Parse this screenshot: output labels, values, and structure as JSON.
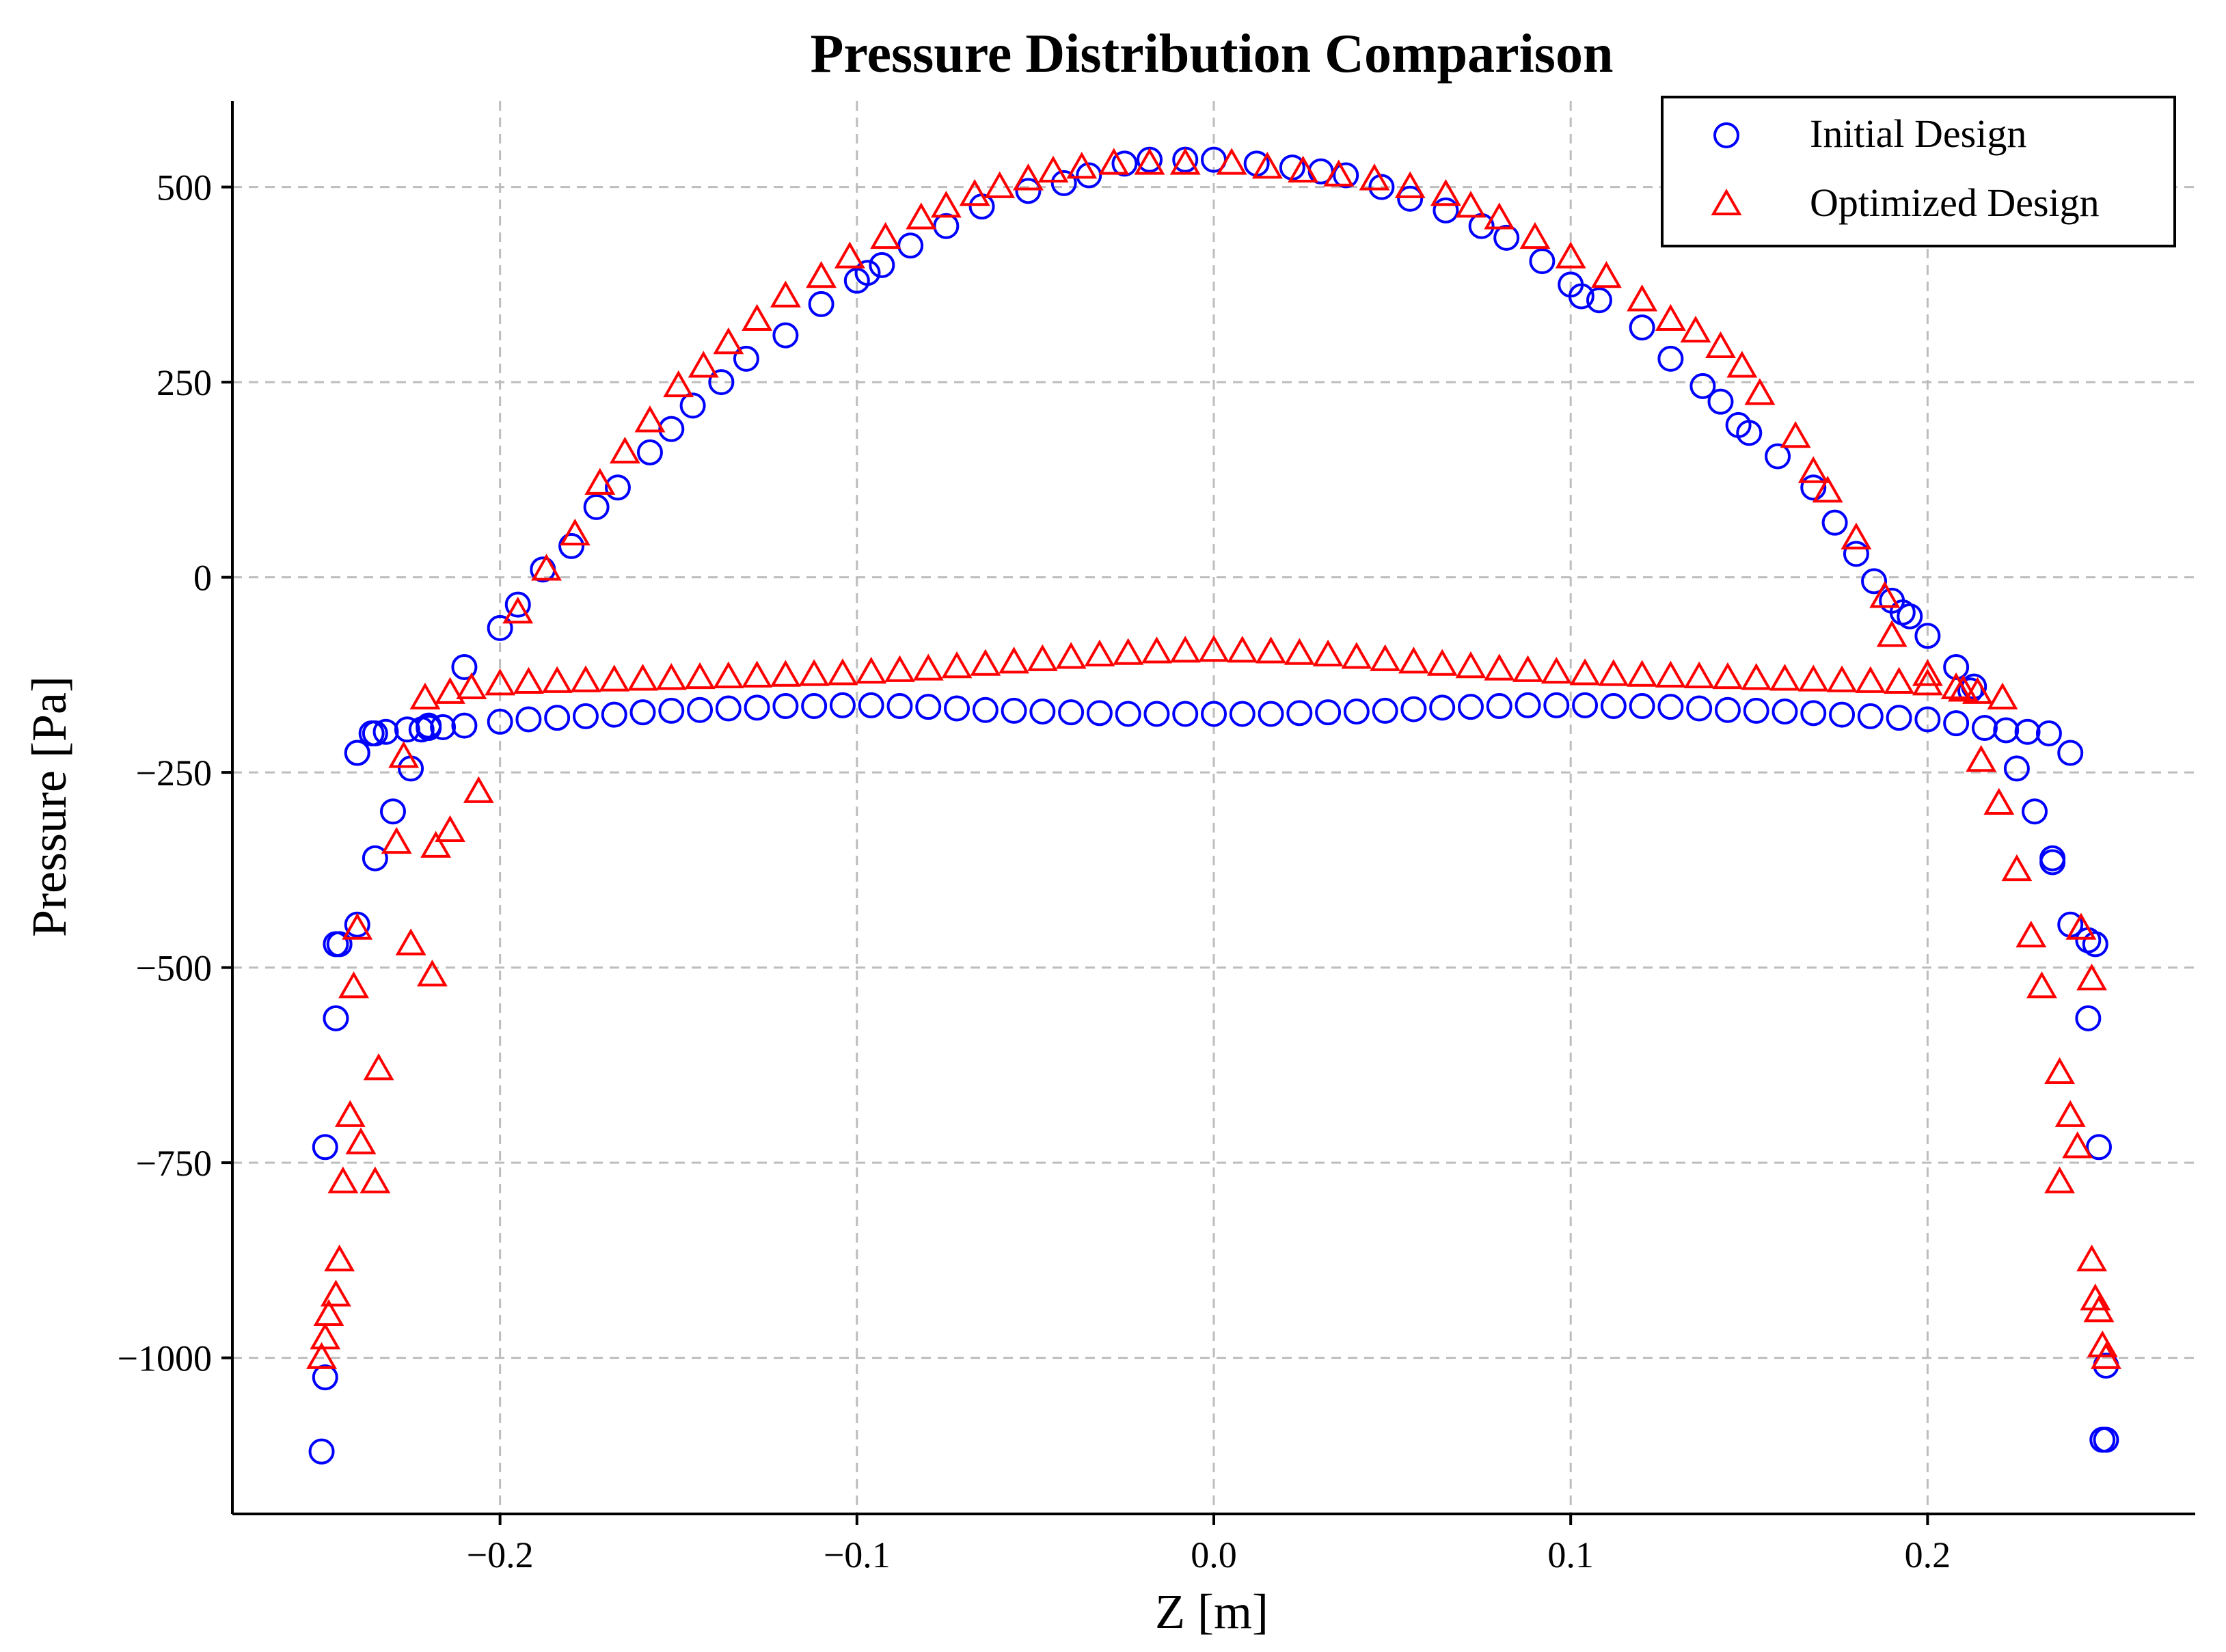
{
  "chart_data": {
    "type": "scatter",
    "title": "Pressure Distribution Comparison",
    "xlabel": "Z [m]",
    "ylabel": "Pressure [Pa]",
    "xlim": [
      -0.275,
      0.275
    ],
    "ylim": [
      -1200,
      610
    ],
    "xticks": [
      -0.2,
      -0.1,
      0.0,
      0.1,
      0.2
    ],
    "xtick_labels": [
      "−0.2",
      "−0.1",
      "0.0",
      "0.1",
      "0.2"
    ],
    "yticks": [
      -1000,
      -750,
      -500,
      -250,
      0,
      250,
      500
    ],
    "ytick_labels": [
      "−1000",
      "−750",
      "−500",
      "−250",
      "0",
      "250",
      "500"
    ],
    "grid": true,
    "legend_position": "top-right",
    "series": [
      {
        "name": "Initial Design",
        "marker": "circle",
        "color": "#0000ff",
        "x": [
          -0.25,
          -0.249,
          -0.249,
          -0.246,
          -0.246,
          -0.245,
          -0.24,
          -0.24,
          -0.235,
          -0.235,
          -0.23,
          -0.225,
          -0.222,
          -0.22,
          -0.21,
          -0.2,
          -0.195,
          -0.188,
          -0.18,
          -0.173,
          -0.167,
          -0.158,
          -0.152,
          -0.146,
          -0.138,
          -0.131,
          -0.12,
          -0.11,
          -0.1,
          -0.097,
          -0.093,
          -0.085,
          -0.075,
          -0.065,
          -0.052,
          -0.042,
          -0.035,
          -0.025,
          -0.018,
          -0.008,
          0.0,
          0.012,
          0.022,
          0.03,
          0.037,
          0.047,
          0.055,
          0.065,
          0.075,
          0.082,
          0.092,
          0.1,
          0.103,
          0.108,
          0.12,
          0.128,
          0.137,
          0.142,
          0.147,
          0.15,
          0.158,
          0.168,
          0.174,
          0.18,
          0.185,
          0.19,
          0.193,
          0.195,
          0.2,
          0.208,
          0.212,
          0.213,
          0.225,
          0.23,
          0.235,
          0.235,
          0.24,
          0.245,
          0.245,
          0.247,
          0.248,
          0.25,
          0.25,
          0.249,
          -0.24,
          -0.236,
          -0.232,
          -0.226,
          -0.22,
          -0.216,
          -0.21,
          -0.2,
          -0.192,
          -0.184,
          -0.176,
          -0.168,
          -0.16,
          -0.152,
          -0.144,
          -0.136,
          -0.128,
          -0.12,
          -0.112,
          -0.104,
          -0.096,
          -0.088,
          -0.08,
          -0.072,
          -0.064,
          -0.056,
          -0.048,
          -0.04,
          -0.032,
          -0.024,
          -0.016,
          -0.008,
          0.0,
          0.008,
          0.016,
          0.024,
          0.032,
          0.04,
          0.048,
          0.056,
          0.064,
          0.072,
          0.08,
          0.088,
          0.096,
          0.104,
          0.112,
          0.12,
          0.128,
          0.136,
          0.144,
          0.152,
          0.16,
          0.168,
          0.176,
          0.184,
          0.192,
          0.2,
          0.208,
          0.216,
          0.222,
          0.228,
          0.234,
          0.24
        ],
        "y": [
          -1120,
          -1025,
          -730,
          -565,
          -470,
          -470,
          -445,
          -225,
          -360,
          -200,
          -300,
          -245,
          -195,
          -190,
          -115,
          -65,
          -35,
          10,
          40,
          90,
          115,
          160,
          190,
          220,
          250,
          280,
          310,
          350,
          380,
          390,
          400,
          425,
          450,
          475,
          495,
          505,
          515,
          530,
          535,
          535,
          535,
          530,
          525,
          520,
          515,
          500,
          485,
          470,
          450,
          435,
          405,
          375,
          360,
          355,
          320,
          280,
          245,
          225,
          195,
          185,
          155,
          115,
          70,
          30,
          -5,
          -30,
          -45,
          -50,
          -75,
          -115,
          -145,
          -140,
          -245,
          -300,
          -360,
          -365,
          -445,
          -465,
          -565,
          -470,
          -730,
          -1105,
          -1010,
          -1105,
          -225,
          -200,
          -198,
          -195,
          -193,
          -192,
          -190,
          -185,
          -182,
          -180,
          -178,
          -176,
          -173,
          -171,
          -170,
          -168,
          -167,
          -165,
          -165,
          -164,
          -164,
          -165,
          -166,
          -168,
          -170,
          -171,
          -172,
          -173,
          -174,
          -175,
          -175,
          -175,
          -175,
          -175,
          -175,
          -174,
          -173,
          -172,
          -171,
          -169,
          -167,
          -166,
          -165,
          -164,
          -164,
          -164,
          -165,
          -165,
          -166,
          -168,
          -170,
          -171,
          -172,
          -174,
          -176,
          -178,
          -180,
          -182,
          -187,
          -193,
          -196,
          -198,
          -200,
          -225
        ]
      },
      {
        "name": "Optimized Design",
        "marker": "triangle",
        "color": "#ff0000",
        "x": [
          -0.25,
          -0.249,
          -0.248,
          -0.246,
          -0.245,
          -0.244,
          -0.242,
          -0.241,
          -0.24,
          -0.239,
          -0.235,
          -0.234,
          -0.229,
          -0.227,
          -0.225,
          -0.219,
          -0.218,
          -0.214,
          -0.206,
          -0.195,
          -0.187,
          -0.179,
          -0.172,
          -0.165,
          -0.158,
          -0.15,
          -0.143,
          -0.136,
          -0.128,
          -0.12,
          -0.11,
          -0.102,
          -0.092,
          -0.082,
          -0.075,
          -0.067,
          -0.06,
          -0.052,
          -0.045,
          -0.037,
          -0.028,
          -0.018,
          -0.008,
          0.005,
          0.015,
          0.025,
          0.035,
          0.045,
          0.055,
          0.065,
          0.072,
          0.08,
          0.09,
          0.1,
          0.11,
          0.12,
          0.128,
          0.135,
          0.142,
          0.148,
          0.153,
          0.163,
          0.168,
          0.172,
          0.18,
          0.188,
          0.19,
          0.2,
          0.21,
          0.215,
          0.22,
          0.225,
          0.229,
          0.232,
          0.237,
          0.237,
          0.24,
          0.242,
          0.243,
          0.246,
          0.246,
          0.247,
          0.248,
          0.249,
          0.25,
          -0.221,
          -0.214,
          -0.208,
          -0.2,
          -0.192,
          -0.184,
          -0.176,
          -0.168,
          -0.16,
          -0.152,
          -0.144,
          -0.136,
          -0.128,
          -0.12,
          -0.112,
          -0.104,
          -0.096,
          -0.088,
          -0.08,
          -0.072,
          -0.064,
          -0.056,
          -0.048,
          -0.04,
          -0.032,
          -0.024,
          -0.016,
          -0.008,
          0.0,
          0.008,
          0.016,
          0.024,
          0.032,
          0.04,
          0.048,
          0.056,
          0.064,
          0.072,
          0.08,
          0.088,
          0.096,
          0.104,
          0.112,
          0.12,
          0.128,
          0.136,
          0.144,
          0.152,
          0.16,
          0.168,
          0.176,
          0.184,
          0.192,
          0.2,
          0.208,
          0.214,
          0.221
        ],
        "y": [
          -1000,
          -975,
          -945,
          -920,
          -875,
          -775,
          -690,
          -525,
          -450,
          -725,
          -775,
          -630,
          -340,
          -230,
          -470,
          -510,
          -345,
          -325,
          -275,
          -45,
          10,
          55,
          120,
          160,
          200,
          245,
          270,
          300,
          330,
          360,
          385,
          410,
          435,
          460,
          475,
          490,
          500,
          510,
          520,
          525,
          530,
          530,
          530,
          530,
          525,
          520,
          515,
          510,
          500,
          490,
          475,
          460,
          435,
          410,
          385,
          355,
          330,
          315,
          295,
          270,
          235,
          180,
          135,
          110,
          50,
          -25,
          -75,
          -125,
          -145,
          -235,
          -290,
          -375,
          -460,
          -525,
          -635,
          -775,
          -690,
          -730,
          -450,
          -875,
          -515,
          -925,
          -940,
          -985,
          -1000,
          -155,
          -148,
          -142,
          -137,
          -135,
          -134,
          -133,
          -132,
          -131,
          -130,
          -129,
          -128,
          -127,
          -126,
          -125,
          -124,
          -122,
          -120,
          -118,
          -115,
          -112,
          -109,
          -106,
          -103,
          -100,
          -98,
          -96,
          -95,
          -94,
          -95,
          -96,
          -98,
          -100,
          -103,
          -106,
          -109,
          -112,
          -115,
          -118,
          -120,
          -122,
          -124,
          -125,
          -126,
          -127,
          -128,
          -129,
          -130,
          -131,
          -132,
          -133,
          -134,
          -135,
          -137,
          -142,
          -148,
          -155
        ]
      }
    ]
  }
}
